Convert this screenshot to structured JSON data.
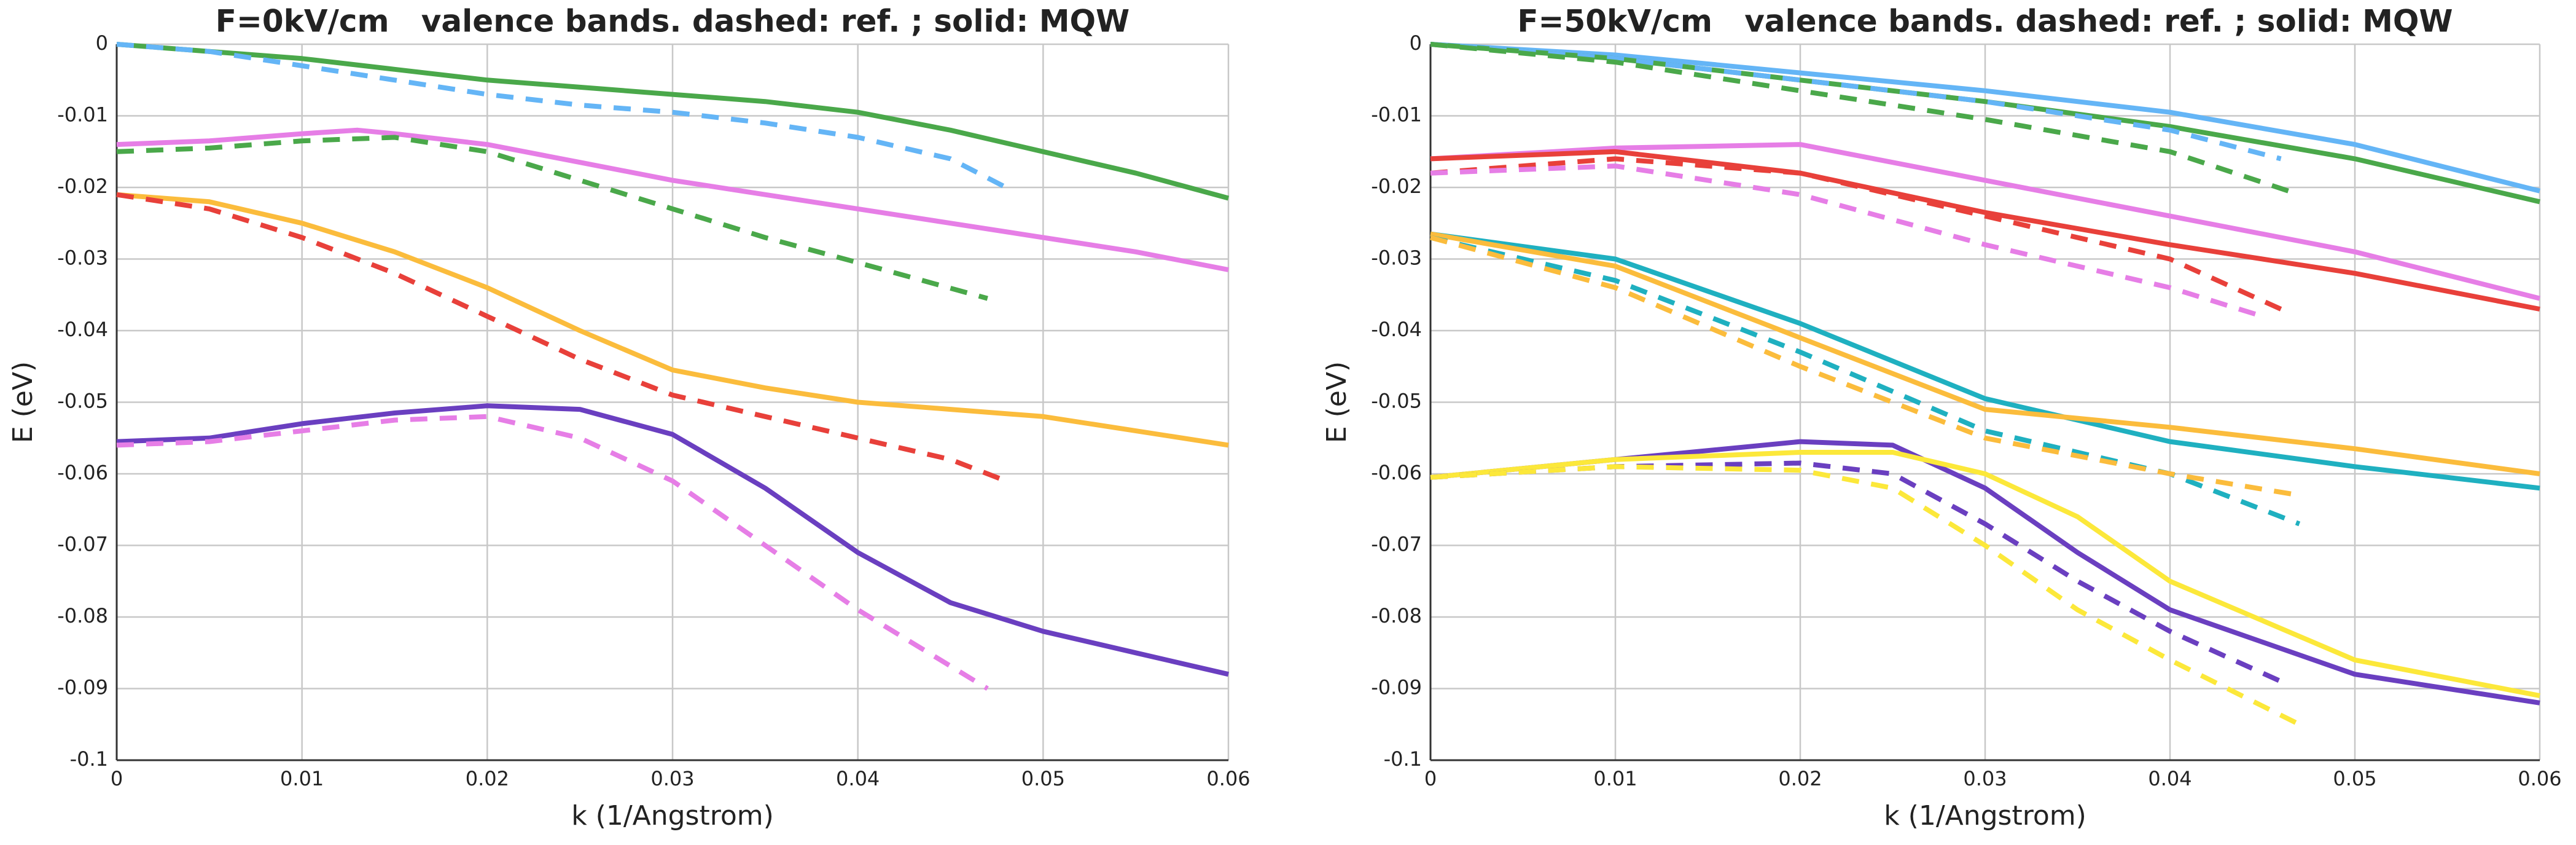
{
  "chart_data": [
    {
      "type": "line",
      "title": "F=0kV/cm   valence bands. dashed: ref. ; solid: MQW",
      "xlabel": "k (1/Angstrom)",
      "ylabel": "E (eV)",
      "xlim": [
        0,
        0.06
      ],
      "ylim": [
        -0.1,
        0
      ],
      "xticks": [
        0,
        0.01,
        0.02,
        0.03,
        0.04,
        0.05,
        0.06
      ],
      "yticks": [
        0,
        -0.01,
        -0.02,
        -0.03,
        -0.04,
        -0.05,
        -0.06,
        -0.07,
        -0.08,
        -0.09,
        -0.1
      ],
      "grid": true,
      "series": [
        {
          "color": "#4aa84a",
          "dashed": false,
          "x": [
            0,
            0.005,
            0.01,
            0.015,
            0.02,
            0.025,
            0.03,
            0.035,
            0.04,
            0.045,
            0.05,
            0.055,
            0.06
          ],
          "values": [
            0,
            -0.001,
            -0.002,
            -0.0035,
            -0.005,
            -0.006,
            -0.007,
            -0.008,
            -0.0095,
            -0.012,
            -0.015,
            -0.018,
            -0.0215
          ]
        },
        {
          "color": "#64b5f6",
          "dashed": true,
          "x": [
            0,
            0.005,
            0.01,
            0.015,
            0.02,
            0.025,
            0.03,
            0.035,
            0.04,
            0.045,
            0.048
          ],
          "values": [
            0,
            -0.001,
            -0.003,
            -0.005,
            -0.007,
            -0.0085,
            -0.0095,
            -0.011,
            -0.013,
            -0.016,
            -0.02
          ]
        },
        {
          "color": "#e67ee6",
          "dashed": false,
          "x": [
            0,
            0.005,
            0.01,
            0.013,
            0.015,
            0.02,
            0.025,
            0.03,
            0.035,
            0.04,
            0.045,
            0.05,
            0.055,
            0.06
          ],
          "values": [
            -0.014,
            -0.0135,
            -0.0125,
            -0.012,
            -0.0125,
            -0.014,
            -0.0165,
            -0.019,
            -0.021,
            -0.023,
            -0.025,
            -0.027,
            -0.029,
            -0.0315
          ]
        },
        {
          "color": "#4aa84a",
          "dashed": true,
          "x": [
            0,
            0.005,
            0.01,
            0.015,
            0.02,
            0.025,
            0.03,
            0.035,
            0.04,
            0.047
          ],
          "values": [
            -0.015,
            -0.0145,
            -0.0135,
            -0.013,
            -0.015,
            -0.019,
            -0.023,
            -0.027,
            -0.0305,
            -0.0355
          ]
        },
        {
          "color": "#fbbc3c",
          "dashed": false,
          "x": [
            0,
            0.005,
            0.01,
            0.015,
            0.02,
            0.025,
            0.03,
            0.035,
            0.04,
            0.045,
            0.05,
            0.055,
            0.06
          ],
          "values": [
            -0.021,
            -0.022,
            -0.025,
            -0.029,
            -0.034,
            -0.04,
            -0.0455,
            -0.048,
            -0.05,
            -0.051,
            -0.052,
            -0.054,
            -0.056
          ]
        },
        {
          "color": "#e8403a",
          "dashed": true,
          "x": [
            0,
            0.005,
            0.01,
            0.015,
            0.02,
            0.025,
            0.03,
            0.035,
            0.04,
            0.045,
            0.048
          ],
          "values": [
            -0.021,
            -0.023,
            -0.027,
            -0.032,
            -0.038,
            -0.044,
            -0.049,
            -0.052,
            -0.055,
            -0.058,
            -0.061
          ]
        },
        {
          "color": "#6a3fc0",
          "dashed": false,
          "x": [
            0,
            0.005,
            0.01,
            0.015,
            0.02,
            0.025,
            0.03,
            0.035,
            0.04,
            0.045,
            0.05,
            0.055,
            0.06
          ],
          "values": [
            -0.0555,
            -0.055,
            -0.053,
            -0.0515,
            -0.0505,
            -0.051,
            -0.0545,
            -0.062,
            -0.071,
            -0.078,
            -0.082,
            -0.085,
            -0.088
          ]
        },
        {
          "color": "#e67ee6",
          "dashed": true,
          "x": [
            0,
            0.005,
            0.01,
            0.015,
            0.02,
            0.025,
            0.03,
            0.035,
            0.04,
            0.047
          ],
          "values": [
            -0.056,
            -0.0555,
            -0.054,
            -0.0525,
            -0.052,
            -0.055,
            -0.061,
            -0.07,
            -0.079,
            -0.09
          ]
        }
      ]
    },
    {
      "type": "line",
      "title": "F=50kV/cm   valence bands. dashed: ref. ; solid: MQW",
      "xlabel": "k (1/Angstrom)",
      "ylabel": "E (eV)",
      "xlim": [
        0,
        0.06
      ],
      "ylim": [
        -0.1,
        0
      ],
      "xticks": [
        0,
        0.01,
        0.02,
        0.03,
        0.04,
        0.05,
        0.06
      ],
      "yticks": [
        0,
        -0.01,
        -0.02,
        -0.03,
        -0.04,
        -0.05,
        -0.06,
        -0.07,
        -0.08,
        -0.09,
        -0.1
      ],
      "grid": true,
      "series": [
        {
          "color": "#64b5f6",
          "dashed": false,
          "x": [
            0,
            0.01,
            0.02,
            0.03,
            0.04,
            0.05,
            0.06
          ],
          "values": [
            0,
            -0.0015,
            -0.004,
            -0.0065,
            -0.0095,
            -0.014,
            -0.0205
          ]
        },
        {
          "color": "#4aa84a",
          "dashed": false,
          "x": [
            0,
            0.01,
            0.02,
            0.03,
            0.04,
            0.05,
            0.06
          ],
          "values": [
            0,
            -0.002,
            -0.005,
            -0.008,
            -0.0115,
            -0.016,
            -0.022
          ]
        },
        {
          "color": "#64b5f6",
          "dashed": true,
          "x": [
            0,
            0.01,
            0.02,
            0.03,
            0.04,
            0.046
          ],
          "values": [
            0,
            -0.002,
            -0.005,
            -0.008,
            -0.012,
            -0.016
          ]
        },
        {
          "color": "#4aa84a",
          "dashed": true,
          "x": [
            0,
            0.01,
            0.02,
            0.03,
            0.04,
            0.047
          ],
          "values": [
            0,
            -0.0025,
            -0.0065,
            -0.0105,
            -0.015,
            -0.021
          ]
        },
        {
          "color": "#e67ee6",
          "dashed": false,
          "x": [
            0,
            0.01,
            0.02,
            0.03,
            0.04,
            0.05,
            0.06
          ],
          "values": [
            -0.016,
            -0.0145,
            -0.014,
            -0.019,
            -0.024,
            -0.029,
            -0.0355
          ]
        },
        {
          "color": "#e8403a",
          "dashed": false,
          "x": [
            0,
            0.01,
            0.02,
            0.03,
            0.04,
            0.05,
            0.06
          ],
          "values": [
            -0.016,
            -0.015,
            -0.018,
            -0.0235,
            -0.028,
            -0.032,
            -0.037
          ]
        },
        {
          "color": "#e8403a",
          "dashed": true,
          "x": [
            0,
            0.01,
            0.02,
            0.03,
            0.04,
            0.046
          ],
          "values": [
            -0.018,
            -0.016,
            -0.018,
            -0.024,
            -0.03,
            -0.037
          ]
        },
        {
          "color": "#e67ee6",
          "dashed": true,
          "x": [
            0,
            0.01,
            0.02,
            0.03,
            0.04,
            0.045
          ],
          "values": [
            -0.018,
            -0.017,
            -0.021,
            -0.028,
            -0.034,
            -0.038
          ]
        },
        {
          "color": "#1fb0c0",
          "dashed": false,
          "x": [
            0,
            0.01,
            0.02,
            0.03,
            0.04,
            0.05,
            0.06
          ],
          "values": [
            -0.0265,
            -0.03,
            -0.039,
            -0.0495,
            -0.0555,
            -0.059,
            -0.062
          ]
        },
        {
          "color": "#fbbc3c",
          "dashed": false,
          "x": [
            0,
            0.01,
            0.02,
            0.03,
            0.04,
            0.05,
            0.06
          ],
          "values": [
            -0.0265,
            -0.031,
            -0.041,
            -0.051,
            -0.0535,
            -0.0565,
            -0.06
          ]
        },
        {
          "color": "#1fb0c0",
          "dashed": true,
          "x": [
            0,
            0.01,
            0.02,
            0.03,
            0.04,
            0.047
          ],
          "values": [
            -0.027,
            -0.033,
            -0.043,
            -0.054,
            -0.06,
            -0.067
          ]
        },
        {
          "color": "#fbbc3c",
          "dashed": true,
          "x": [
            0,
            0.01,
            0.02,
            0.03,
            0.04,
            0.047
          ],
          "values": [
            -0.027,
            -0.034,
            -0.045,
            -0.055,
            -0.06,
            -0.063
          ]
        },
        {
          "color": "#6a3fc0",
          "dashed": false,
          "x": [
            0,
            0.01,
            0.02,
            0.025,
            0.03,
            0.035,
            0.04,
            0.05,
            0.06
          ],
          "values": [
            -0.0605,
            -0.058,
            -0.0555,
            -0.056,
            -0.062,
            -0.071,
            -0.079,
            -0.088,
            -0.092
          ]
        },
        {
          "color": "#fce83a",
          "dashed": false,
          "x": [
            0,
            0.01,
            0.02,
            0.025,
            0.03,
            0.035,
            0.04,
            0.05,
            0.06
          ],
          "values": [
            -0.0605,
            -0.058,
            -0.057,
            -0.057,
            -0.06,
            -0.066,
            -0.075,
            -0.086,
            -0.091
          ]
        },
        {
          "color": "#6a3fc0",
          "dashed": true,
          "x": [
            0,
            0.01,
            0.02,
            0.025,
            0.03,
            0.035,
            0.04,
            0.046
          ],
          "values": [
            -0.0605,
            -0.059,
            -0.0585,
            -0.06,
            -0.067,
            -0.075,
            -0.082,
            -0.089
          ]
        },
        {
          "color": "#fce83a",
          "dashed": true,
          "x": [
            0,
            0.01,
            0.02,
            0.025,
            0.03,
            0.035,
            0.04,
            0.047
          ],
          "values": [
            -0.0605,
            -0.059,
            -0.0595,
            -0.062,
            -0.07,
            -0.079,
            -0.086,
            -0.095
          ]
        }
      ]
    }
  ]
}
